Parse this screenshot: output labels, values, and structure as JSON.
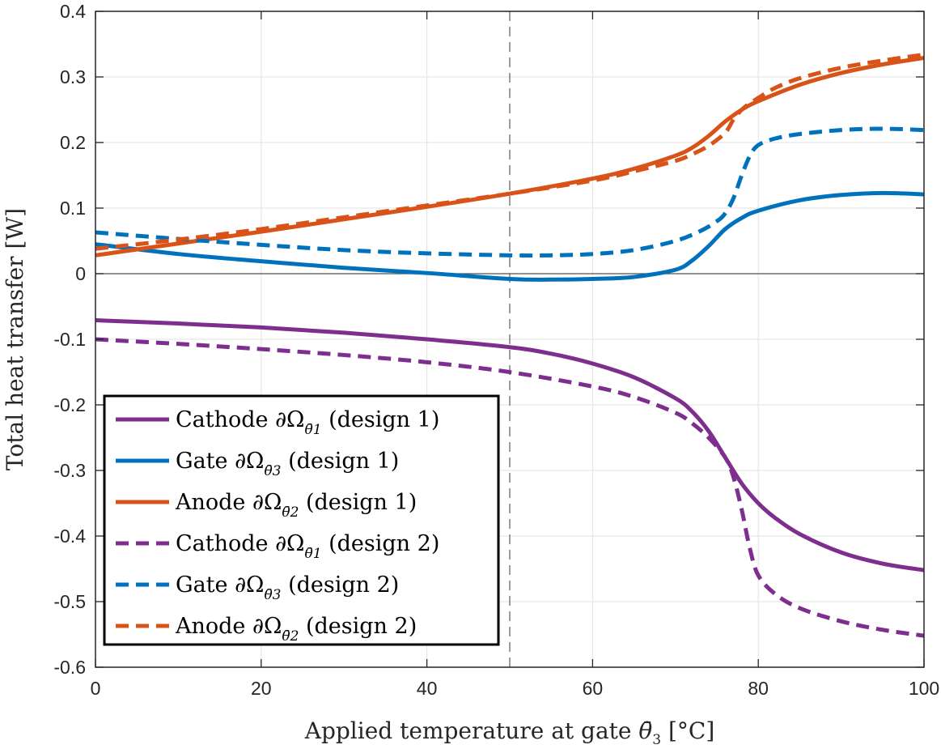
{
  "chart_data": {
    "type": "line",
    "xlabel": "Applied temperature at gate θ̄3 [°C]",
    "xlabel_parts": {
      "pre": "Applied temperature at gate ",
      "sym": "θ̄",
      "sub": "3",
      "post": " [°C]"
    },
    "ylabel": "Total heat transfer [W]",
    "xlim": [
      0,
      100
    ],
    "ylim": [
      -0.6,
      0.4
    ],
    "xticks": [
      0,
      20,
      40,
      60,
      80,
      100
    ],
    "xtick_labels": [
      "0",
      "20",
      "40",
      "60",
      "80",
      "100"
    ],
    "yticks": [
      -0.6,
      -0.5,
      -0.4,
      -0.3,
      -0.2,
      -0.1,
      0,
      0.1,
      0.2,
      0.3,
      0.4
    ],
    "ytick_labels": [
      "-0.6",
      "-0.5",
      "-0.4",
      "-0.3",
      "-0.2",
      "-0.1",
      "0",
      "0.1",
      "0.2",
      "0.3",
      "0.4"
    ],
    "grid": true,
    "reference_lines": {
      "horizontal_y": 0,
      "vertical_dashed_x": 50
    },
    "legend_position": "bottom-left",
    "colors": {
      "cathode": "#7E2F8E",
      "gate": "#0072BD",
      "anode": "#D95319",
      "grid": "#e6e6e6",
      "axis": "#262626"
    },
    "series": [
      {
        "name": "Cathode ∂Ωθ̄1 (design 1)",
        "label_pre": "Cathode ∂Ω",
        "label_sub": "θ̄1",
        "label_post": " (design 1)",
        "color": "#7E2F8E",
        "style": "solid",
        "x": [
          0,
          10,
          20,
          30,
          40,
          50,
          55,
          60,
          65,
          70,
          72,
          74,
          76,
          78,
          80,
          82,
          85,
          90,
          95,
          100
        ],
        "y": [
          -0.071,
          -0.076,
          -0.082,
          -0.09,
          -0.1,
          -0.112,
          -0.122,
          -0.137,
          -0.158,
          -0.19,
          -0.21,
          -0.24,
          -0.28,
          -0.32,
          -0.35,
          -0.372,
          -0.397,
          -0.425,
          -0.442,
          -0.452
        ]
      },
      {
        "name": "Gate ∂Ωθ̄3 (design 1)",
        "label_pre": "Gate ∂Ω",
        "label_sub": "θ̄3",
        "label_post": " (design 1)",
        "color": "#0072BD",
        "style": "solid",
        "x": [
          0,
          10,
          20,
          30,
          40,
          50,
          55,
          60,
          65,
          70,
          72,
          74,
          76,
          78,
          80,
          85,
          90,
          95,
          100
        ],
        "y": [
          0.045,
          0.03,
          0.019,
          0.009,
          0.001,
          -0.008,
          -0.009,
          -0.008,
          -0.005,
          0.006,
          0.02,
          0.042,
          0.068,
          0.085,
          0.096,
          0.112,
          0.12,
          0.123,
          0.121
        ]
      },
      {
        "name": "Anode ∂Ωθ̄2 (design 1)",
        "label_pre": "Anode ∂Ω",
        "label_sub": "θ̄2",
        "label_post": " (design 1)",
        "color": "#D95319",
        "style": "solid",
        "x": [
          0,
          10,
          20,
          30,
          40,
          50,
          60,
          65,
          70,
          72,
          74,
          76,
          78,
          80,
          85,
          90,
          95,
          100
        ],
        "y": [
          0.028,
          0.046,
          0.064,
          0.083,
          0.102,
          0.122,
          0.145,
          0.16,
          0.18,
          0.192,
          0.21,
          0.232,
          0.25,
          0.263,
          0.288,
          0.306,
          0.319,
          0.329
        ]
      },
      {
        "name": "Cathode ∂Ωθ̄1 (design 2)",
        "label_pre": "Cathode ∂Ω",
        "label_sub": "θ̄1",
        "label_post": " (design 2)",
        "color": "#7E2F8E",
        "style": "dashed",
        "x": [
          0,
          10,
          20,
          30,
          40,
          50,
          60,
          65,
          70,
          72,
          74,
          76,
          77,
          78,
          79,
          80,
          82,
          85,
          90,
          95,
          100
        ],
        "y": [
          -0.1,
          -0.107,
          -0.115,
          -0.124,
          -0.135,
          -0.15,
          -0.172,
          -0.188,
          -0.212,
          -0.228,
          -0.25,
          -0.28,
          -0.31,
          -0.36,
          -0.42,
          -0.46,
          -0.488,
          -0.51,
          -0.53,
          -0.543,
          -0.552
        ]
      },
      {
        "name": "Gate ∂Ωθ̄3 (design 2)",
        "label_pre": "Gate ∂Ω",
        "label_sub": "θ̄3",
        "label_post": " (design 2)",
        "color": "#0072BD",
        "style": "dashed",
        "x": [
          0,
          10,
          20,
          30,
          40,
          50,
          55,
          60,
          65,
          70,
          73,
          75,
          76,
          77,
          78,
          79,
          80,
          82,
          85,
          90,
          95,
          100
        ],
        "y": [
          0.063,
          0.053,
          0.044,
          0.036,
          0.031,
          0.028,
          0.028,
          0.03,
          0.036,
          0.05,
          0.065,
          0.08,
          0.092,
          0.115,
          0.15,
          0.18,
          0.196,
          0.206,
          0.213,
          0.219,
          0.221,
          0.219
        ]
      },
      {
        "name": "Anode ∂Ωθ̄2 (design 2)",
        "label_pre": "Anode ∂Ω",
        "label_sub": "θ̄2",
        "label_post": " (design 2)",
        "color": "#D95319",
        "style": "dashed",
        "x": [
          0,
          10,
          20,
          30,
          40,
          50,
          60,
          65,
          70,
          72,
          74,
          76,
          77,
          78,
          79,
          80,
          82,
          85,
          90,
          95,
          100
        ],
        "y": [
          0.038,
          0.052,
          0.068,
          0.086,
          0.104,
          0.122,
          0.142,
          0.156,
          0.172,
          0.182,
          0.195,
          0.215,
          0.235,
          0.25,
          0.26,
          0.268,
          0.283,
          0.298,
          0.314,
          0.325,
          0.334
        ]
      }
    ]
  }
}
